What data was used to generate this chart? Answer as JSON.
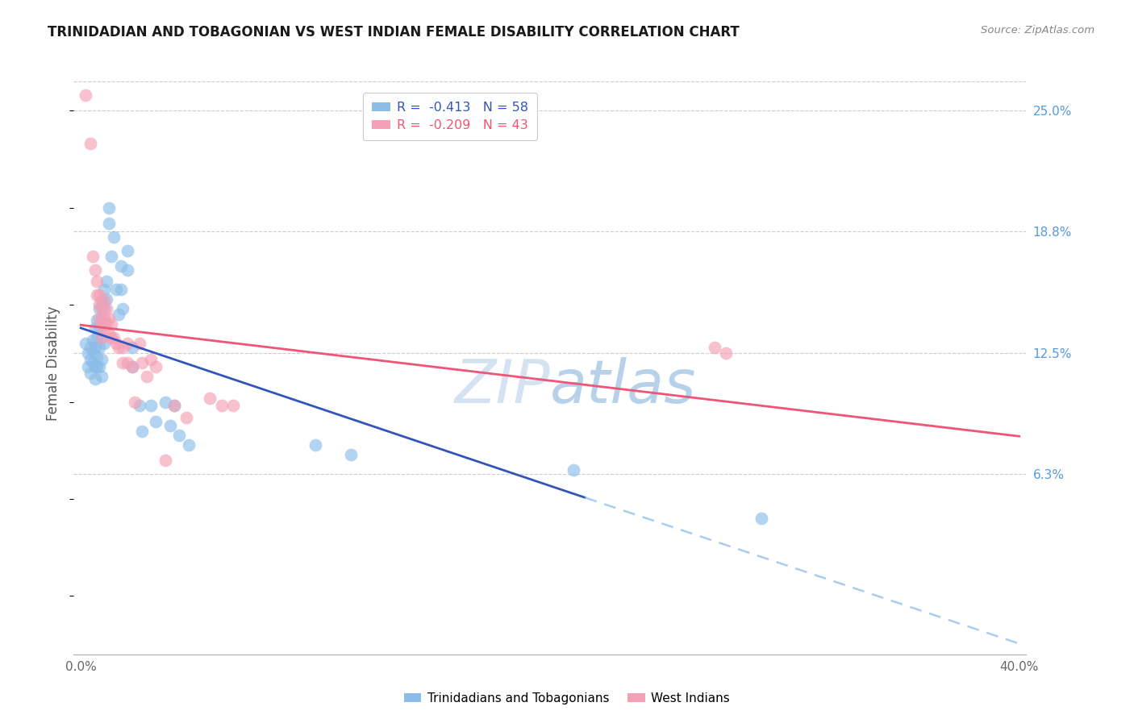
{
  "title": "TRINIDADIAN AND TOBAGONIAN VS WEST INDIAN FEMALE DISABILITY CORRELATION CHART",
  "source": "Source: ZipAtlas.com",
  "ylabel": "Female Disability",
  "xlim": [
    0.0,
    0.4
  ],
  "ylim": [
    -0.03,
    0.27
  ],
  "ytick_labels_right": [
    "25.0%",
    "18.8%",
    "12.5%",
    "6.3%"
  ],
  "ytick_values_right": [
    0.25,
    0.188,
    0.125,
    0.063
  ],
  "grid_color": "#cccccc",
  "background_color": "#ffffff",
  "blue_color": "#8BBDE8",
  "pink_color": "#F4A0B5",
  "blue_line_color": "#3355BB",
  "pink_line_color": "#EE5577",
  "blue_dashed_color": "#AACCEE",
  "legend_R_blue": "R =  -0.413",
  "legend_N_blue": "N = 58",
  "legend_R_pink": "R =  -0.209",
  "legend_N_pink": "N = 43",
  "legend_label_blue": "Trinidadians and Tobagonians",
  "legend_label_pink": "West Indians",
  "watermark_zip": "ZIP",
  "watermark_atlas": "atlas",
  "blue_scatter": [
    [
      0.002,
      0.13
    ],
    [
      0.003,
      0.118
    ],
    [
      0.003,
      0.125
    ],
    [
      0.004,
      0.122
    ],
    [
      0.004,
      0.115
    ],
    [
      0.004,
      0.128
    ],
    [
      0.005,
      0.132
    ],
    [
      0.005,
      0.12
    ],
    [
      0.005,
      0.126
    ],
    [
      0.006,
      0.138
    ],
    [
      0.006,
      0.128
    ],
    [
      0.006,
      0.118
    ],
    [
      0.006,
      0.112
    ],
    [
      0.007,
      0.142
    ],
    [
      0.007,
      0.133
    ],
    [
      0.007,
      0.123
    ],
    [
      0.007,
      0.118
    ],
    [
      0.008,
      0.148
    ],
    [
      0.008,
      0.138
    ],
    [
      0.008,
      0.128
    ],
    [
      0.008,
      0.118
    ],
    [
      0.009,
      0.152
    ],
    [
      0.009,
      0.142
    ],
    [
      0.009,
      0.133
    ],
    [
      0.009,
      0.122
    ],
    [
      0.009,
      0.113
    ],
    [
      0.01,
      0.158
    ],
    [
      0.01,
      0.148
    ],
    [
      0.01,
      0.14
    ],
    [
      0.01,
      0.13
    ],
    [
      0.011,
      0.162
    ],
    [
      0.011,
      0.153
    ],
    [
      0.012,
      0.2
    ],
    [
      0.012,
      0.192
    ],
    [
      0.013,
      0.175
    ],
    [
      0.014,
      0.185
    ],
    [
      0.015,
      0.158
    ],
    [
      0.016,
      0.145
    ],
    [
      0.017,
      0.17
    ],
    [
      0.017,
      0.158
    ],
    [
      0.018,
      0.148
    ],
    [
      0.02,
      0.178
    ],
    [
      0.02,
      0.168
    ],
    [
      0.022,
      0.128
    ],
    [
      0.022,
      0.118
    ],
    [
      0.025,
      0.098
    ],
    [
      0.026,
      0.085
    ],
    [
      0.03,
      0.098
    ],
    [
      0.032,
      0.09
    ],
    [
      0.036,
      0.1
    ],
    [
      0.038,
      0.088
    ],
    [
      0.04,
      0.098
    ],
    [
      0.042,
      0.083
    ],
    [
      0.046,
      0.078
    ],
    [
      0.1,
      0.078
    ],
    [
      0.115,
      0.073
    ],
    [
      0.21,
      0.065
    ],
    [
      0.29,
      0.04
    ]
  ],
  "pink_scatter": [
    [
      0.002,
      0.258
    ],
    [
      0.004,
      0.233
    ],
    [
      0.005,
      0.175
    ],
    [
      0.006,
      0.168
    ],
    [
      0.007,
      0.162
    ],
    [
      0.007,
      0.155
    ],
    [
      0.008,
      0.15
    ],
    [
      0.008,
      0.143
    ],
    [
      0.008,
      0.155
    ],
    [
      0.009,
      0.148
    ],
    [
      0.009,
      0.14
    ],
    [
      0.009,
      0.133
    ],
    [
      0.01,
      0.152
    ],
    [
      0.01,
      0.143
    ],
    [
      0.01,
      0.138
    ],
    [
      0.011,
      0.148
    ],
    [
      0.011,
      0.14
    ],
    [
      0.012,
      0.143
    ],
    [
      0.012,
      0.135
    ],
    [
      0.013,
      0.14
    ],
    [
      0.013,
      0.133
    ],
    [
      0.014,
      0.133
    ],
    [
      0.015,
      0.13
    ],
    [
      0.016,
      0.128
    ],
    [
      0.018,
      0.128
    ],
    [
      0.018,
      0.12
    ],
    [
      0.02,
      0.13
    ],
    [
      0.02,
      0.12
    ],
    [
      0.022,
      0.118
    ],
    [
      0.023,
      0.1
    ],
    [
      0.025,
      0.13
    ],
    [
      0.026,
      0.12
    ],
    [
      0.028,
      0.113
    ],
    [
      0.03,
      0.122
    ],
    [
      0.032,
      0.118
    ],
    [
      0.036,
      0.07
    ],
    [
      0.04,
      0.098
    ],
    [
      0.045,
      0.092
    ],
    [
      0.055,
      0.102
    ],
    [
      0.06,
      0.098
    ],
    [
      0.065,
      0.098
    ],
    [
      0.27,
      0.128
    ],
    [
      0.275,
      0.125
    ]
  ]
}
